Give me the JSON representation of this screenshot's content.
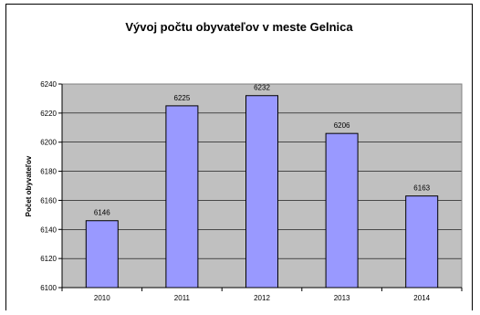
{
  "chart_data": {
    "type": "bar",
    "title": "Vývoj počtu obyvateľov v meste Gelnica",
    "xlabel": "",
    "ylabel": "Počet obyvateľov",
    "categories": [
      "2010",
      "2011",
      "2012",
      "2013",
      "2014"
    ],
    "values": [
      6146,
      6225,
      6232,
      6206,
      6163
    ],
    "ylim": [
      6100,
      6240
    ],
    "yticks": [
      "6100",
      "6120",
      "6140",
      "6160",
      "6180",
      "6200",
      "6220",
      "6240"
    ],
    "grid": true,
    "legend": "none",
    "colors": {
      "bar_fill": "#9999ff",
      "bar_stroke": "#000000",
      "plot_background": "#c0c0c0",
      "gridline": "#000000"
    }
  }
}
